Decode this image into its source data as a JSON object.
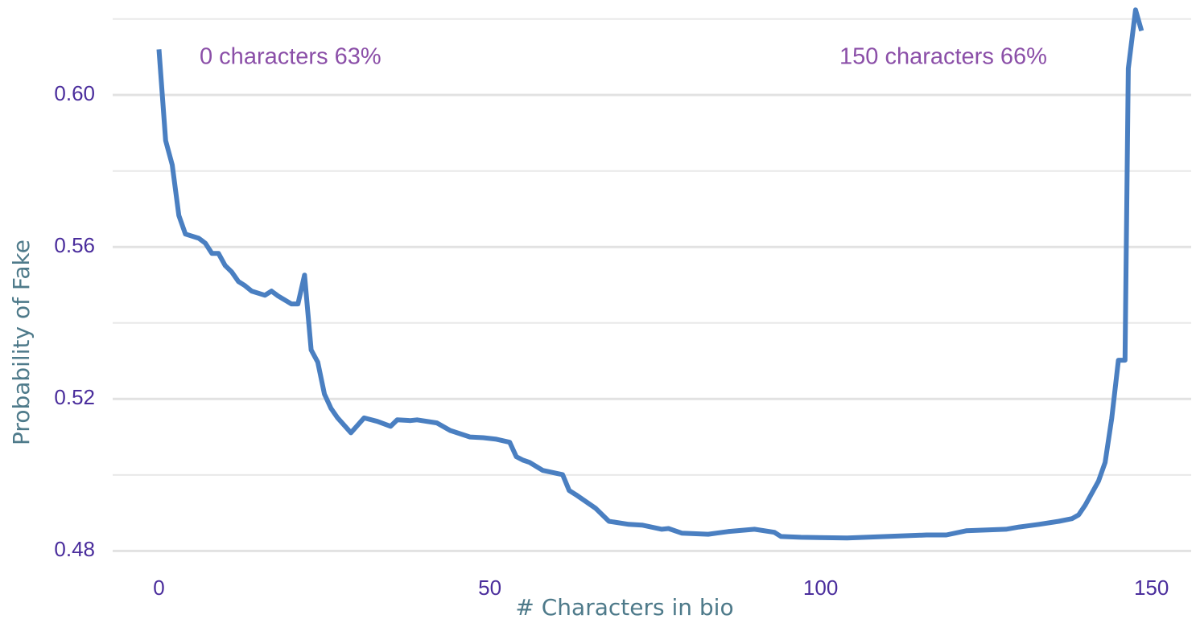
{
  "chart_data": {
    "type": "line",
    "x_label": "# Characters in bio",
    "y_label": "Probability of Fake",
    "annotations": [
      "0 characters 63%",
      "150 characters 66%"
    ],
    "xlim": [
      -7,
      156
    ],
    "ylim": [
      0.475,
      0.625
    ],
    "xticks": [
      0,
      50,
      100,
      150
    ],
    "yticks": [
      0.48,
      0.52,
      0.56,
      {
        "value": 0.6,
        "label": "0.60"
      }
    ],
    "minor_yticks": [
      0.5,
      0.54,
      0.58,
      0.62
    ],
    "grid": true,
    "series": [
      {
        "color": "#4a7fc1",
        "x": [
          0,
          1,
          2,
          3,
          4,
          6,
          7,
          8,
          9,
          10,
          11,
          12,
          13,
          14,
          16,
          17,
          18,
          20,
          21,
          22,
          23,
          24,
          25,
          26,
          27,
          29,
          31,
          33,
          35,
          36,
          38,
          39,
          42,
          44,
          47,
          49,
          51,
          53,
          54,
          55,
          56,
          58,
          61,
          62,
          63,
          66,
          68,
          71,
          73,
          76,
          77,
          79,
          83,
          86,
          90,
          93,
          94,
          97,
          104,
          110,
          116,
          119,
          122,
          128,
          130,
          133,
          136,
          138,
          139,
          140,
          142,
          143,
          144,
          145,
          146,
          146.5,
          147.6,
          148.5
        ],
        "values": [
          0.612,
          0.588,
          0.5816,
          0.5683,
          0.5634,
          0.5623,
          0.561,
          0.5583,
          0.5583,
          0.5551,
          0.5534,
          0.5509,
          0.5498,
          0.5484,
          0.5473,
          0.5484,
          0.5471,
          0.545,
          0.545,
          0.5526,
          0.5329,
          0.5297,
          0.5213,
          0.5175,
          0.515,
          0.5111,
          0.515,
          0.5141,
          0.5128,
          0.5145,
          0.5143,
          0.5145,
          0.5137,
          0.5117,
          0.51,
          0.5098,
          0.5094,
          0.5086,
          0.5048,
          0.5039,
          0.5033,
          0.5012,
          0.5001,
          0.4959,
          0.4948,
          0.4912,
          0.4878,
          0.487,
          0.4868,
          0.4857,
          0.4859,
          0.4847,
          0.4844,
          0.4851,
          0.4857,
          0.4849,
          0.4838,
          0.4836,
          0.4834,
          0.4838,
          0.4842,
          0.4842,
          0.4853,
          0.4857,
          0.4863,
          0.487,
          0.4878,
          0.4885,
          0.4895,
          0.4921,
          0.4984,
          0.5033,
          0.5149,
          0.5302,
          0.5302,
          0.607,
          0.6224,
          0.6169
        ]
      }
    ]
  }
}
